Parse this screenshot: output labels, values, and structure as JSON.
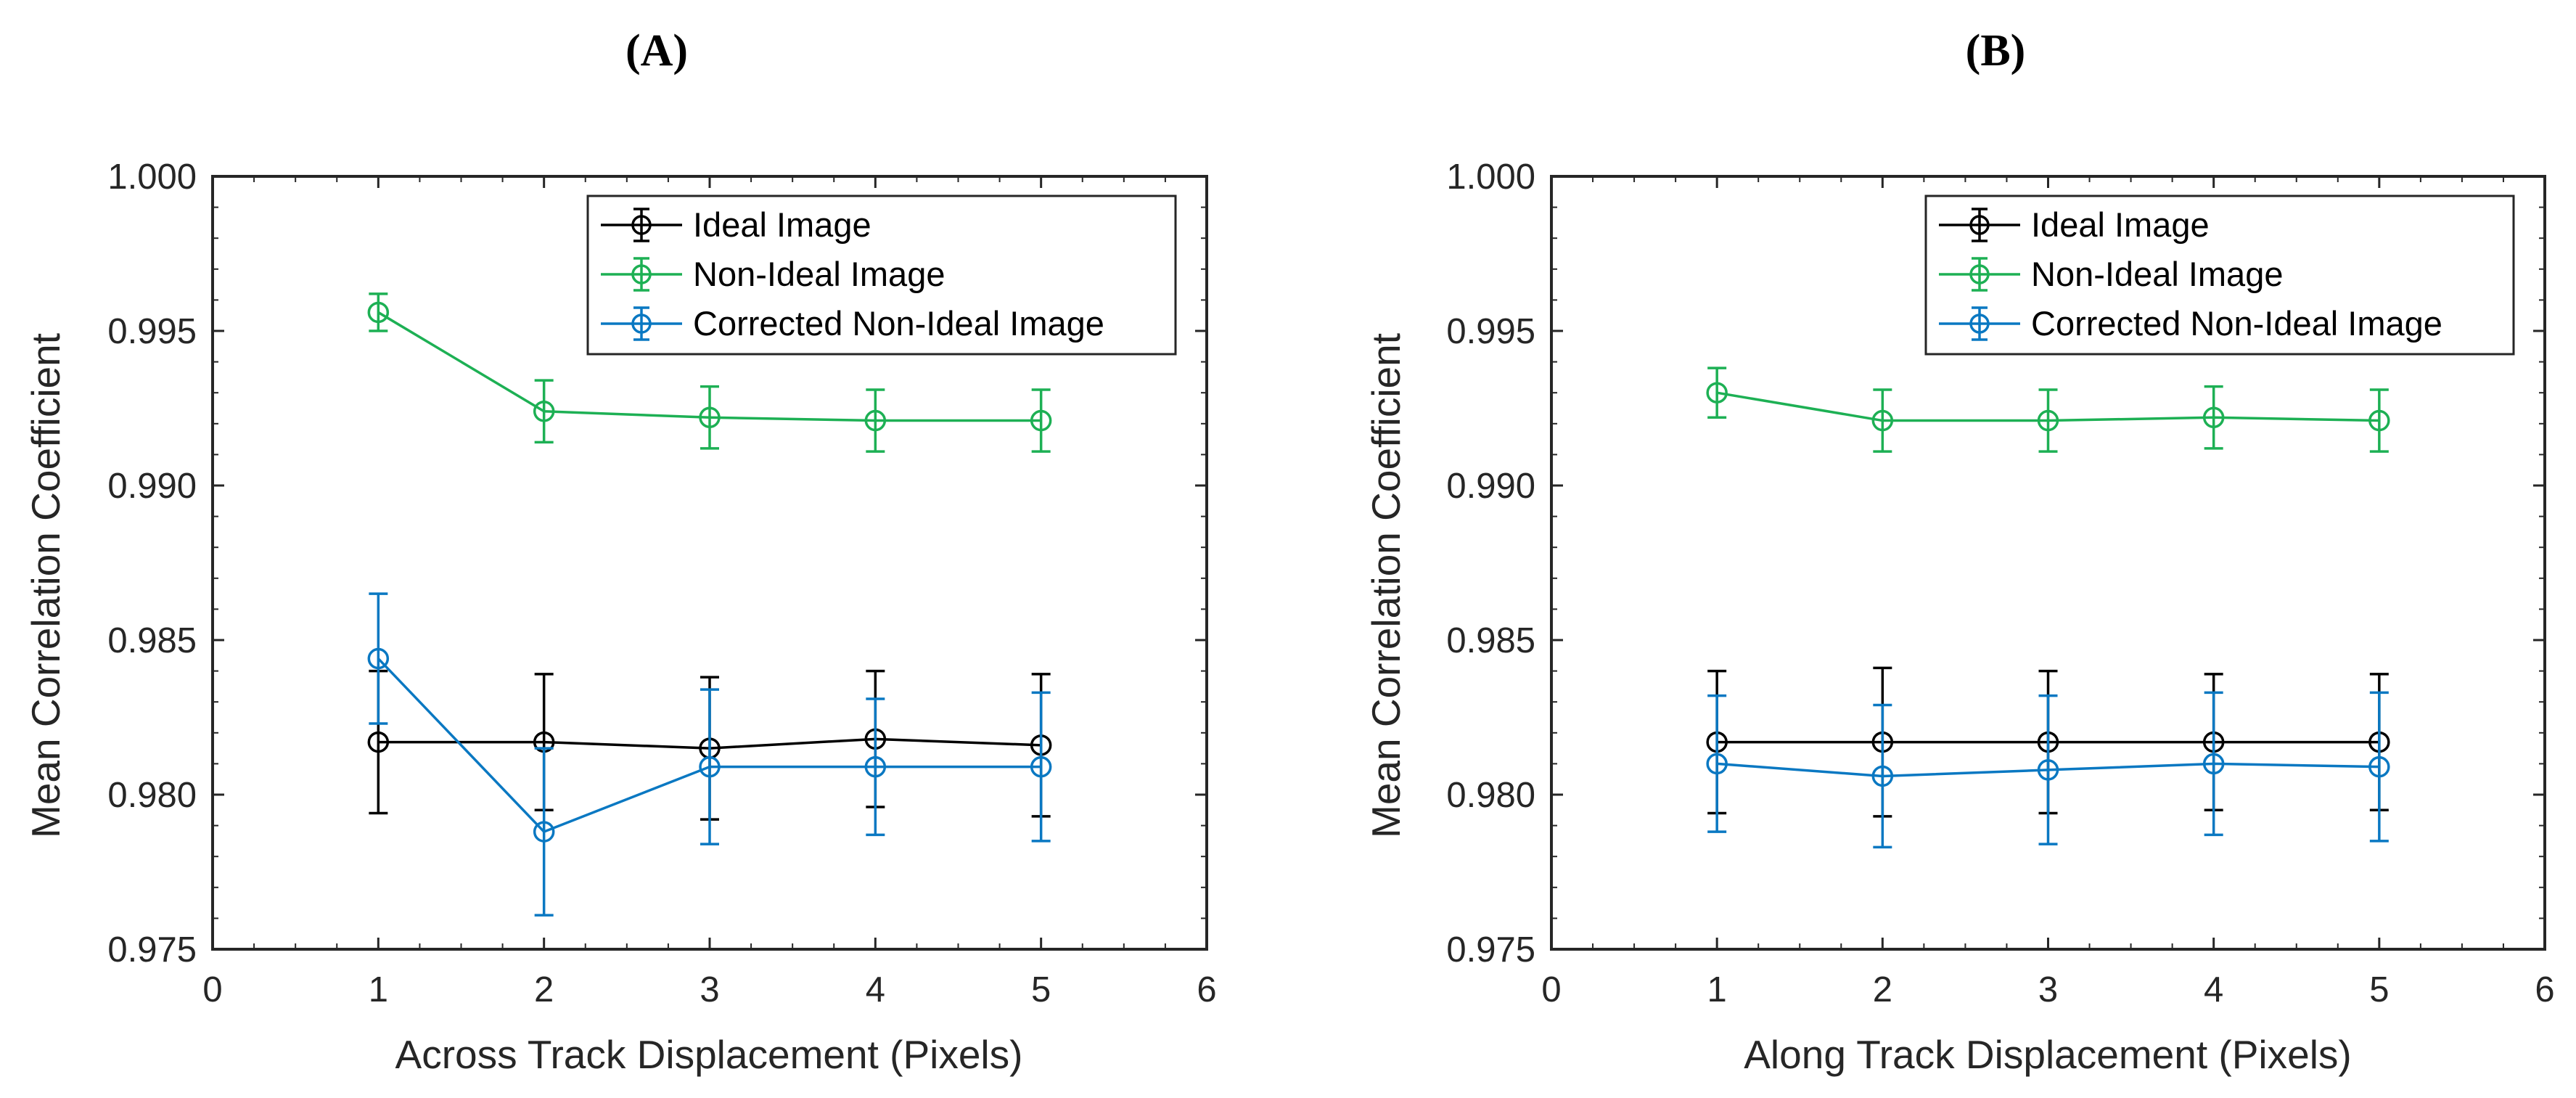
{
  "chart_data": [
    {
      "type": "line",
      "panel_title": "(A)",
      "xlabel": "Across Track Displacement (Pixels)",
      "ylabel": "Mean Correlation Coefficient",
      "xlim": [
        0,
        6
      ],
      "ylim": [
        0.975,
        1.0
      ],
      "xticks": [
        "0",
        "1",
        "2",
        "3",
        "4",
        "5",
        "6"
      ],
      "yticks": [
        "0.975",
        "0.980",
        "0.985",
        "0.990",
        "0.995",
        "1.000"
      ],
      "legend_position": "top-right",
      "series": [
        {
          "name": "Ideal Image",
          "color": "#000000",
          "x": [
            1,
            2,
            3,
            4,
            5
          ],
          "y": [
            0.9817,
            0.9817,
            0.9815,
            0.9818,
            0.9816
          ],
          "err": [
            0.0023,
            0.0022,
            0.0023,
            0.0022,
            0.0023
          ]
        },
        {
          "name": "Non-Ideal Image",
          "color": "#1db054",
          "x": [
            1,
            2,
            3,
            4,
            5
          ],
          "y": [
            0.9956,
            0.9924,
            0.9922,
            0.9921,
            0.9921
          ],
          "err": [
            0.0006,
            0.001,
            0.001,
            0.001,
            0.001
          ]
        },
        {
          "name": "Corrected Non-Ideal Image",
          "color": "#0a78c2",
          "x": [
            1,
            2,
            3,
            4,
            5
          ],
          "y": [
            0.9844,
            0.9788,
            0.9809,
            0.9809,
            0.9809
          ],
          "err": [
            0.0021,
            0.0027,
            0.0025,
            0.0022,
            0.0024
          ]
        }
      ]
    },
    {
      "type": "line",
      "panel_title": "(B)",
      "xlabel": "Along Track Displacement (Pixels)",
      "ylabel": "Mean Correlation Coefficient",
      "xlim": [
        0,
        6
      ],
      "ylim": [
        0.975,
        1.0
      ],
      "xticks": [
        "0",
        "1",
        "2",
        "3",
        "4",
        "5",
        "6"
      ],
      "yticks": [
        "0.975",
        "0.980",
        "0.985",
        "0.990",
        "0.995",
        "1.000"
      ],
      "legend_position": "top-right",
      "series": [
        {
          "name": "Ideal Image",
          "color": "#000000",
          "x": [
            1,
            2,
            3,
            4,
            5
          ],
          "y": [
            0.9817,
            0.9817,
            0.9817,
            0.9817,
            0.9817
          ],
          "err": [
            0.0023,
            0.0024,
            0.0023,
            0.0022,
            0.0022
          ]
        },
        {
          "name": "Non-Ideal Image",
          "color": "#1db054",
          "x": [
            1,
            2,
            3,
            4,
            5
          ],
          "y": [
            0.993,
            0.9921,
            0.9921,
            0.9922,
            0.9921
          ],
          "err": [
            0.0008,
            0.001,
            0.001,
            0.001,
            0.001
          ]
        },
        {
          "name": "Corrected Non-Ideal Image",
          "color": "#0a78c2",
          "x": [
            1,
            2,
            3,
            4,
            5
          ],
          "y": [
            0.981,
            0.9806,
            0.9808,
            0.981,
            0.9809
          ],
          "err": [
            0.0022,
            0.0023,
            0.0024,
            0.0023,
            0.0024
          ]
        }
      ]
    }
  ]
}
